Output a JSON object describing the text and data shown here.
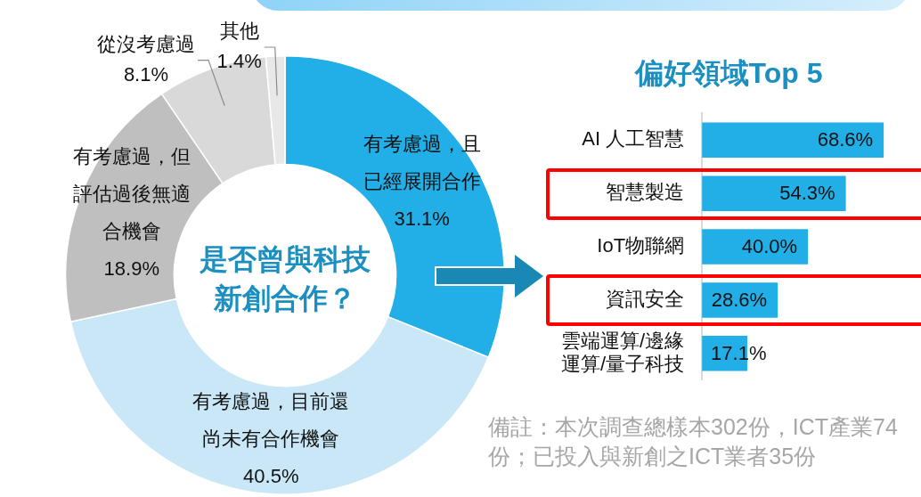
{
  "chart_data": [
    {
      "type": "donut",
      "title": "是否曾與科技新創合作？",
      "categories": [
        "有考慮過，且已經展開合作",
        "有考慮過，目前還尚未有合作機會",
        "有考慮過，但評估過後無適合機會",
        "從沒考慮過",
        "其他"
      ],
      "values": [
        31.1,
        40.5,
        18.9,
        8.1,
        1.4
      ],
      "value_labels": [
        "31.1%",
        "40.5%",
        "18.9%",
        "8.1%",
        "1.4%"
      ],
      "colors": [
        "#22aee6",
        "#c9e7f6",
        "#bfbfbf",
        "#d9d9d9",
        "#e8e8e8"
      ],
      "legend": false
    },
    {
      "type": "bar",
      "orientation": "horizontal",
      "title": "偏好領域Top 5",
      "categories": [
        "AI 人工智慧",
        "智慧製造",
        "IoT物聯網",
        "資訊安全",
        "雲端運算/邊緣運算/量子科技"
      ],
      "values": [
        68.6,
        54.3,
        40.0,
        28.6,
        17.1
      ],
      "value_labels": [
        "68.6%",
        "54.3%",
        "40.0%",
        "28.6%",
        "17.1%"
      ],
      "color": "#22aee6",
      "annotations": [
        "備註：本次調查總樣本302份，ICT產業74份；已投入與新創之ICT業者35份"
      ],
      "legend": false
    }
  ]
}
